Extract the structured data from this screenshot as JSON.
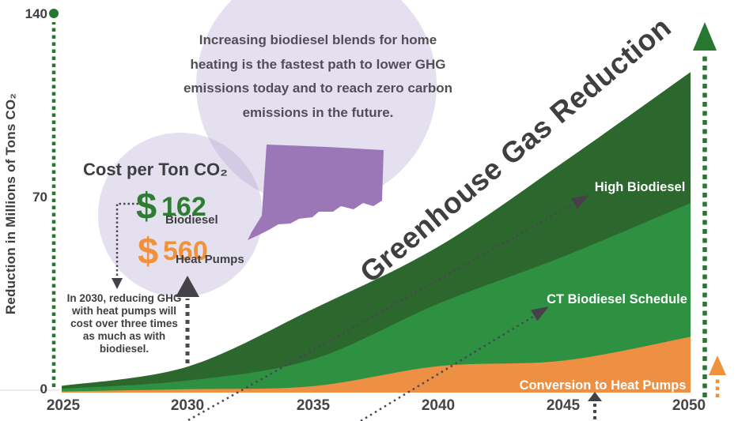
{
  "title": "Greenhouse Gas Reduction",
  "callout_bubble": {
    "text": "Increasing biodiesel blends for home\nheating is the fastest path to lower GHG\nemissions today and to reach zero carbon\nemissions in the future."
  },
  "cost_panel": {
    "heading": "Cost per Ton CO₂",
    "items": [
      {
        "symbol": "$",
        "value": "162",
        "label": "Biodiesel",
        "color": "#2e7d32"
      },
      {
        "symbol": "$",
        "value": "560",
        "label": "Heat Pumps",
        "color": "#f0913b"
      }
    ],
    "note": "In 2030, reducing GHG\nwith heat pumps will\ncost over three times\nas much as with\nbiodiesel."
  },
  "y_axis": {
    "label": "Reduction in Millions of Tons CO₂",
    "tick_labels": [
      "140",
      "70",
      "0"
    ]
  },
  "chart_data": {
    "type": "area",
    "stacked": true,
    "title": "Greenhouse Gas Reduction",
    "xlabel": "",
    "ylabel": "Reduction in Millions of Tons CO₂",
    "x": [
      2025,
      2030,
      2035,
      2040,
      2045,
      2050
    ],
    "x_tick_labels": [
      "2025",
      "2030",
      "2035",
      "2040",
      "2045",
      "2050"
    ],
    "ylim": [
      0,
      140
    ],
    "yticks": [
      0,
      70,
      140
    ],
    "grid": false,
    "legend": "labels drawn inside bands",
    "values_note": "cumulative_top = top edge of each stacked band in Millions of Tons CO2",
    "series": [
      {
        "name": "Conversion to Heat Pumps",
        "color": "#ee9044",
        "cumulative_top": [
          0.4,
          1.2,
          2.3,
          9.5,
          11.5,
          20
        ]
      },
      {
        "name": "CT Biodiesel Schedule",
        "color": "#2e9142",
        "cumulative_top": [
          1.4,
          4.3,
          12,
          32,
          49,
          68
        ]
      },
      {
        "name": "High Biodiesel",
        "color": "#2c672e",
        "cumulative_top": [
          2.4,
          9.3,
          30,
          52.5,
          83,
          115
        ]
      }
    ]
  },
  "annotations": {
    "map_region": "Connecticut",
    "arrow_2030_points_at": "cost comparison circle",
    "right_arrows": [
      "biodiesel reduction trend up (green)",
      "heat pump reduction trend up (orange)"
    ]
  },
  "colors": {
    "high_biodiesel": "#2c672e",
    "ct_biodiesel_schedule": "#2e9142",
    "heat_pumps": "#ee9044",
    "axis_arrow_green": "#26772f",
    "heat_pump_arrow_orange": "#f0913b",
    "map_purple": "#9b77b7",
    "lavender_circle": "#e4dff0",
    "text_dark": "#3f3e41"
  }
}
